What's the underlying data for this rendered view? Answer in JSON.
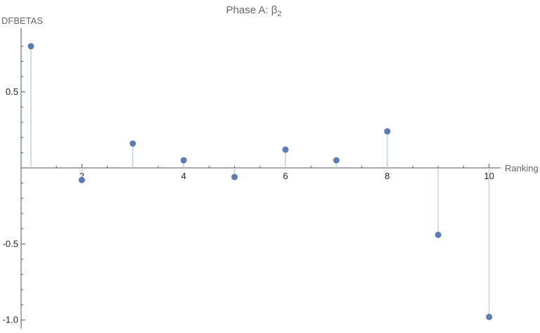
{
  "chart_data": {
    "type": "scatter",
    "style": "stem",
    "title": "Phase A: β",
    "title_subscript": "2",
    "xlabel": "Ranking",
    "ylabel": "DFBETAS",
    "x": [
      1,
      2,
      3,
      4,
      5,
      6,
      7,
      8,
      9,
      10
    ],
    "y": [
      0.8,
      -0.08,
      0.16,
      0.05,
      -0.06,
      0.12,
      0.05,
      0.24,
      -0.44,
      -0.98
    ],
    "xlim": [
      0.85,
      10.3
    ],
    "ylim": [
      -1.05,
      0.85
    ],
    "x_ticks": [
      2,
      4,
      6,
      8,
      10
    ],
    "x_tick_labels": [
      "2",
      "4",
      "6",
      "8",
      "10"
    ],
    "y_ticks": [
      0.5,
      -0.5,
      -1.0
    ],
    "y_tick_labels": [
      "0.5",
      "-0.5",
      "-1.0"
    ],
    "grid": false,
    "legend": "none",
    "colors": {
      "point": "#5b7db4",
      "stem": "#bcd0e4",
      "axis": "#555555",
      "title": "#666666"
    }
  }
}
